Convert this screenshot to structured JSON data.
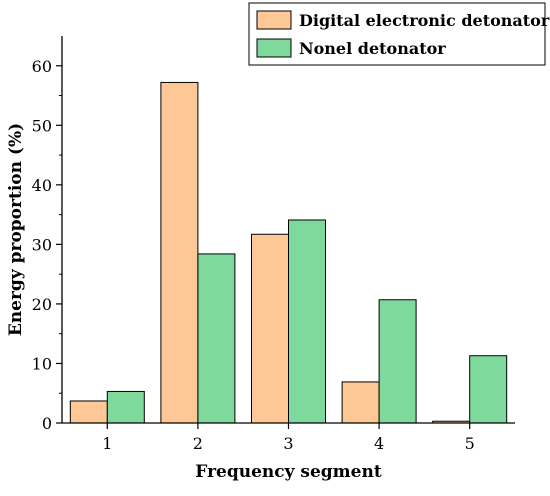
{
  "chart_data": {
    "type": "bar",
    "title": "",
    "xlabel": "Frequency segment",
    "ylabel": "Energy proportion (%)",
    "categories": [
      "1",
      "2",
      "3",
      "4",
      "5"
    ],
    "ylim": [
      0,
      65
    ],
    "yticks": [
      0,
      10,
      20,
      30,
      40,
      50,
      60
    ],
    "grid": false,
    "legend_position": "top-right",
    "series": [
      {
        "name": "Digital electronic detonator",
        "color": "#fdc896",
        "values": [
          3.7,
          57.2,
          31.7,
          6.9,
          0.3
        ]
      },
      {
        "name": "Nonel detonator",
        "color": "#7fd99d",
        "values": [
          5.3,
          28.4,
          34.1,
          20.7,
          11.3
        ]
      }
    ]
  }
}
